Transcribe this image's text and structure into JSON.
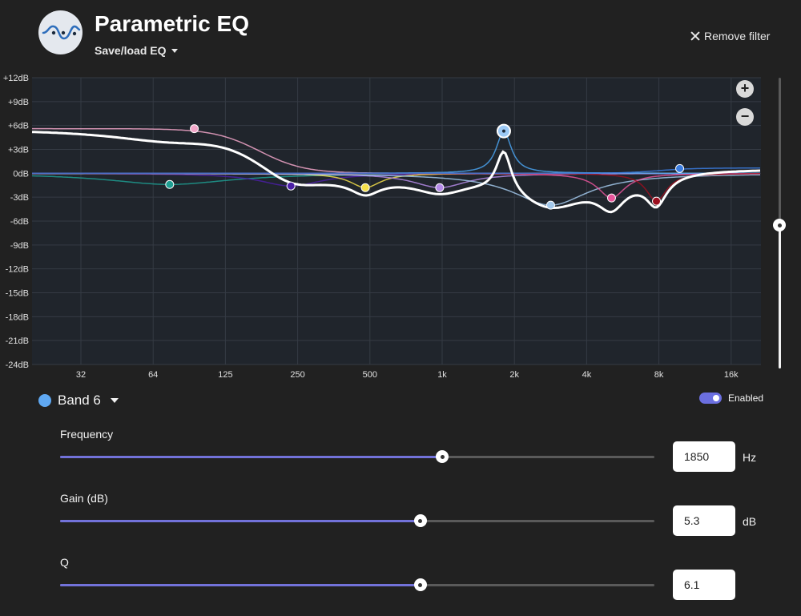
{
  "app": {
    "title": "Parametric EQ",
    "save_load_label": "Save/load EQ",
    "remove_filter_label": "Remove filter",
    "logo_icon": "eq-curve-logo"
  },
  "graph": {
    "y_ticks": [
      "+12dB",
      "+9dB",
      "+6dB",
      "+3dB",
      "0dB",
      "-3dB",
      "-6dB",
      "-9dB",
      "-12dB",
      "-15dB",
      "-18dB",
      "-21dB",
      "-24dB"
    ],
    "x_ticks": [
      "32",
      "64",
      "125",
      "250",
      "500",
      "1k",
      "2k",
      "4k",
      "8k",
      "16k"
    ],
    "zoom_in_label": "+",
    "zoom_out_label": "−",
    "vertical_zoom_level": 0.5,
    "bands": [
      {
        "color": "#1e9e92",
        "freq": 75,
        "gain": -1.4
      },
      {
        "color": "#f2a6c9",
        "freq": 95,
        "gain": 5.6
      },
      {
        "color": "#4b1fa6",
        "freq": 240,
        "gain": -1.6
      },
      {
        "color": "#f5e04a",
        "freq": 490,
        "gain": -1.8
      },
      {
        "color": "#b58be8",
        "freq": 1000,
        "gain": -1.8
      },
      {
        "color": "#4aa3f0",
        "freq": 1850,
        "gain": 5.3
      },
      {
        "color": "#a3c9ec",
        "freq": 2900,
        "gain": -4.0
      },
      {
        "color": "#e8559b",
        "freq": 5200,
        "gain": -3.1
      },
      {
        "color": "#9c0f1f",
        "freq": 8000,
        "gain": -3.5
      },
      {
        "color": "#3b7de0",
        "freq": 10000,
        "gain": 0.6
      }
    ],
    "selected_band": 5
  },
  "band_panel": {
    "band_label": "Band 6",
    "band_color": "#5fa8f2",
    "enabled_label": "Enabled",
    "enabled": true
  },
  "params": {
    "frequency": {
      "label": "Frequency",
      "value": "1850",
      "unit": "Hz",
      "fraction": 0.643
    },
    "gain": {
      "label": "Gain (dB)",
      "value": "5.3",
      "unit": "dB",
      "fraction": 0.606
    },
    "q": {
      "label": "Q",
      "value": "6.1",
      "unit": "",
      "fraction": 0.606
    }
  }
}
